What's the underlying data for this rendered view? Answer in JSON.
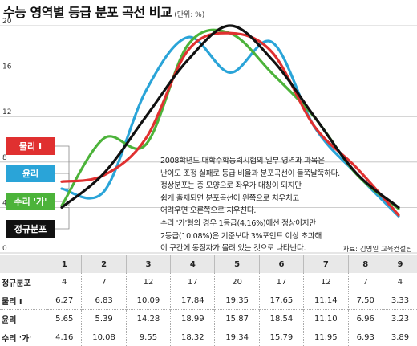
{
  "title": "수능 영역별 등급 분포 곡선 비교",
  "unit": "(단위: %)",
  "source": "자료: 김영일 교육컨설팅",
  "annotation": [
    "2008학년도 대학수학능력시험의 일부 영역과 과목은",
    "난이도 조정 실패로 등급 비율과 분포곡선이 들쭉날쭉하다.",
    "정상분포는 종 모양으로 좌우가 대칭이 되지만",
    "쉽게 출제되면 분포곡선이 왼쪽으로 치우치고",
    "어려우면 오른쪽으로 치우친다.",
    "수리 '가'형의 경우 1등급(4.16%)에선 정상이지만",
    "2등급(10.08%)은 기준보다 3%포인트 이상 초과해",
    "이 구간에 동점자가 몰려 있는 것으로 나타난다."
  ],
  "chart_data": {
    "type": "line",
    "x": [
      1,
      2,
      3,
      4,
      5,
      6,
      7,
      8,
      9
    ],
    "ylim": [
      0,
      20
    ],
    "yticks": [
      0,
      4,
      8,
      12,
      16,
      20
    ],
    "series": [
      {
        "name": "물리 I",
        "color": "#e03030",
        "values": [
          6.27,
          6.83,
          10.09,
          17.84,
          19.35,
          17.65,
          11.14,
          7.5,
          3.33
        ]
      },
      {
        "name": "윤리",
        "color": "#2aa4d8",
        "values": [
          5.65,
          5.39,
          14.28,
          18.99,
          15.87,
          18.54,
          11.1,
          6.96,
          3.23
        ]
      },
      {
        "name": "수리 '가'",
        "color": "#4cb33a",
        "values": [
          4.16,
          10.08,
          9.55,
          18.32,
          19.34,
          15.79,
          11.95,
          6.93,
          3.89
        ]
      },
      {
        "name": "정규분포",
        "color": "#111111",
        "values": [
          4,
          7,
          12,
          17,
          20,
          17,
          12,
          7,
          4
        ]
      }
    ]
  },
  "table": {
    "header": [
      "1",
      "2",
      "3",
      "4",
      "5",
      "6",
      "7",
      "8",
      "9"
    ],
    "rows": [
      {
        "label": "정규분포",
        "values": [
          "4",
          "7",
          "12",
          "17",
          "20",
          "17",
          "12",
          "7",
          "4"
        ]
      },
      {
        "label": "물리 I",
        "values": [
          "6.27",
          "6.83",
          "10.09",
          "17.84",
          "19.35",
          "17.65",
          "11.14",
          "7.50",
          "3.33"
        ]
      },
      {
        "label": "윤리",
        "values": [
          "5.65",
          "5.39",
          "14.28",
          "18.99",
          "15.87",
          "18.54",
          "11.10",
          "6.96",
          "3.23"
        ]
      },
      {
        "label": "수리 '가'",
        "values": [
          "4.16",
          "10.08",
          "9.55",
          "18.32",
          "19.34",
          "15.79",
          "11.95",
          "6.93",
          "3.89"
        ]
      }
    ]
  }
}
